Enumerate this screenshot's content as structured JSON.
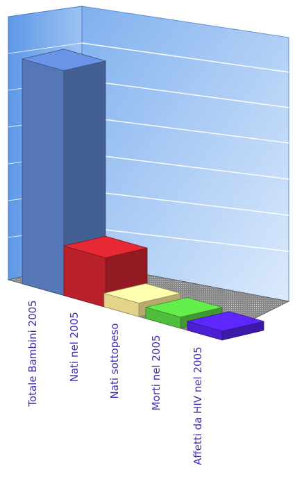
{
  "chart_data": {
    "type": "bar",
    "categories": [
      "Totale Bambini 2005",
      "Nati nel 2005",
      "Nati sottopeso",
      "Morti nel 2005",
      "Affetti da HIV nel 2005"
    ],
    "values": [
      100,
      22,
      6,
      5,
      4
    ],
    "ylim": [
      0,
      105
    ],
    "grid": true,
    "legend": "none",
    "colors": [
      "#5577b8",
      "#b8212a",
      "#e3d48a",
      "#4fbe3c",
      "#4b1fd2"
    ],
    "label_color": "#3a2fb5"
  }
}
